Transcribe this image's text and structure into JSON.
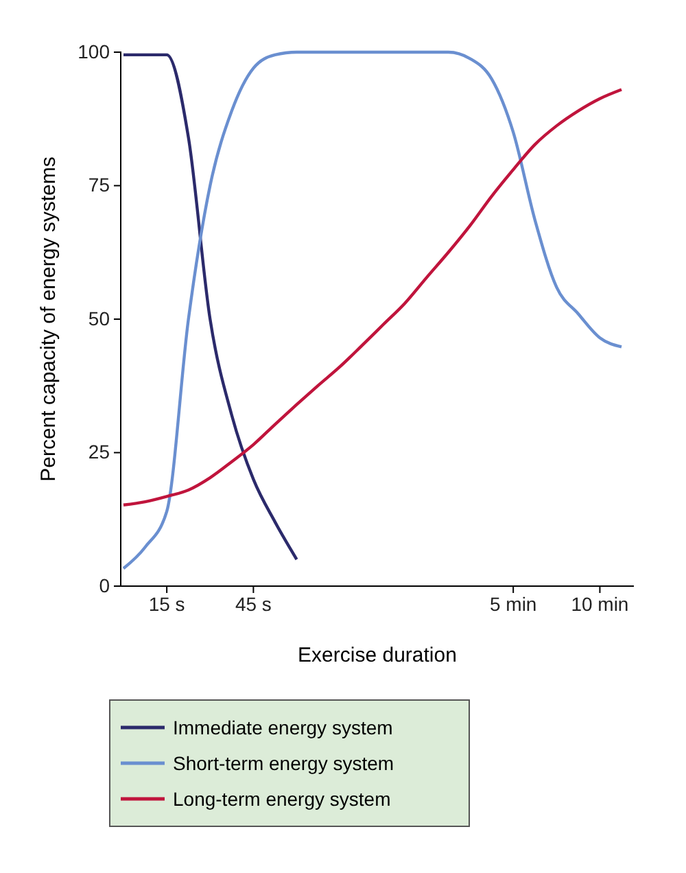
{
  "chart_data": {
    "type": "line",
    "xlabel": "Exercise duration",
    "ylabel": "Percent capacity of energy systems",
    "categories": [
      null,
      null,
      "15 s",
      null,
      null,
      null,
      "45 s",
      null,
      null,
      null,
      null,
      null,
      null,
      null,
      null,
      null,
      null,
      null,
      "5 min",
      null,
      null,
      null,
      "10 min",
      null
    ],
    "ylim": [
      0,
      100
    ],
    "yticks": [
      0,
      25,
      50,
      75,
      100
    ],
    "legend": "bottom",
    "series": [
      {
        "name": "Immediate energy system",
        "color": "#2b2a6b",
        "values": [
          99.5,
          99.5,
          99.5,
          84,
          50,
          32,
          20,
          12,
          5,
          null,
          null,
          null,
          null,
          null,
          null,
          null,
          null,
          null,
          null,
          null,
          null,
          null,
          null,
          null
        ]
      },
      {
        "name": "Short-term energy system",
        "color": "#6a8fd0",
        "values": [
          3.3,
          7.3,
          14,
          50,
          75,
          89,
          97,
          99.5,
          100,
          100,
          100,
          100,
          100,
          100,
          100,
          100,
          98.8,
          95,
          85,
          68.6,
          56,
          51,
          46.5,
          44.8
        ]
      },
      {
        "name": "Long-term energy system",
        "color": "#c0143c",
        "values": [
          15.2,
          15.8,
          16.8,
          18,
          20.3,
          23.3,
          26.5,
          30.3,
          34,
          37.6,
          41.1,
          45,
          49,
          53,
          57.8,
          62.5,
          67.5,
          73,
          78,
          82.7,
          86.2,
          89,
          91.3,
          93
        ]
      }
    ]
  }
}
